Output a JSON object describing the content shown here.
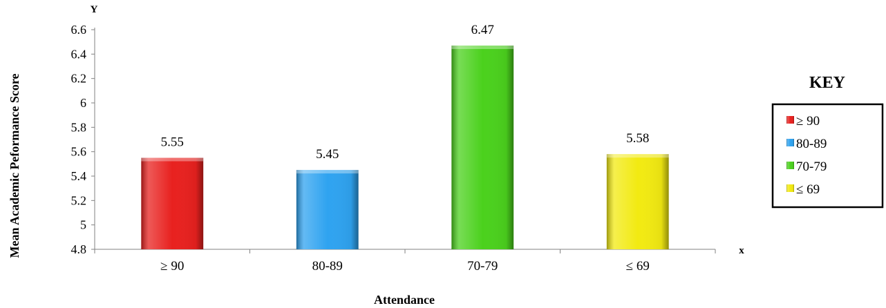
{
  "chart_data": {
    "type": "bar",
    "categories": [
      "≥ 90",
      "80-89",
      "70-79",
      "≤ 69"
    ],
    "values": [
      5.55,
      5.45,
      6.47,
      5.58
    ],
    "colors": [
      "#e8211f",
      "#2fa3f0",
      "#4bd11d",
      "#f2ea12"
    ],
    "xlabel": "Attendance",
    "ylabel": "Mean Academic Peformance Score",
    "y_axis_letter": "Y",
    "x_axis_letter": "x",
    "ylim": [
      4.8,
      6.6
    ],
    "yticks": [
      4.8,
      5,
      5.2,
      5.4,
      5.6,
      5.8,
      6,
      6.2,
      6.4,
      6.6
    ],
    "grid": false,
    "legend": {
      "title": "KEY",
      "placement": "right",
      "entries": [
        "≥ 90",
        "80-89",
        "70-79",
        "≤ 69"
      ]
    }
  }
}
